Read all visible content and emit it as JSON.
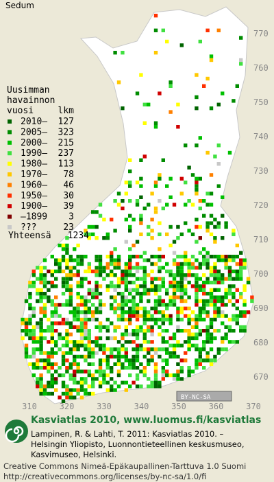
{
  "title": "Sedum",
  "legend": {
    "heading": [
      "Uusimman",
      "havainnon",
      "vuosi"
    ],
    "count_heading": "lkm",
    "rows": [
      {
        "label": "2010–",
        "count": 127,
        "color": "#006400"
      },
      {
        "label": "2005–",
        "count": 323,
        "color": "#008c00"
      },
      {
        "label": "2000–",
        "count": 215,
        "color": "#00c000"
      },
      {
        "label": "1990–",
        "count": 237,
        "color": "#40e040"
      },
      {
        "label": "1980–",
        "count": 113,
        "color": "#ffff00"
      },
      {
        "label": "1970–",
        "count": 78,
        "color": "#ffc800"
      },
      {
        "label": "1960–",
        "count": 46,
        "color": "#ff8000"
      },
      {
        "label": "1950–",
        "count": 30,
        "color": "#ff3000"
      },
      {
        "label": "1900–",
        "count": 39,
        "color": "#d00000"
      },
      {
        "label": "–1899",
        "count": 3,
        "color": "#800000"
      },
      {
        "label": "???",
        "count": 23,
        "color": "#c8c8c8"
      }
    ],
    "total_label": "Yhteensä",
    "total": 1234
  },
  "grid": {
    "y_labels": [
      770,
      760,
      750,
      740,
      730,
      720,
      710,
      700,
      690,
      680,
      670
    ],
    "x_labels": [
      310,
      320,
      330,
      340,
      350,
      360,
      370
    ]
  },
  "license_badge": "BY-NC-SA",
  "footer": {
    "title": "Kasviatlas 2010, www.luomus.fi/kasviatlas",
    "citation": [
      "Lampinen, R. & Lahti, T. 2011: Kasviatlas 2010. –",
      "Helsingin Yliopisto, Luonnontieteellinen keskusmuseo,",
      "Kasvimuseo, Helsinki."
    ],
    "license": [
      "Creative Commons Nimeä-Epäkaupallinen-Tarttuva 1.0 Suomi",
      "http://creativecommons.org/licenses/by-nc-sa/1.0/fi"
    ]
  }
}
